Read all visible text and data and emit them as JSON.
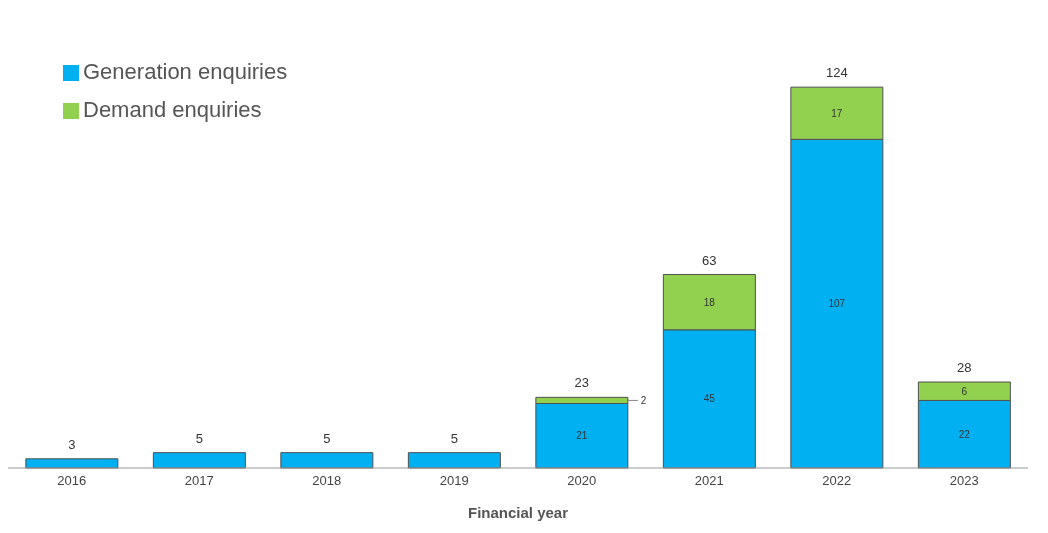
{
  "chart_data": {
    "type": "bar",
    "stacked": true,
    "xlabel": "Financial year",
    "categories": [
      "2016",
      "2017",
      "2018",
      "2019",
      "2020",
      "2021",
      "2022",
      "2023"
    ],
    "series": [
      {
        "name": "Generation enquiries",
        "color": "#00b0f0",
        "values": [
          3,
          5,
          5,
          5,
          21,
          45,
          107,
          22
        ],
        "value_labels": [
          null,
          null,
          null,
          null,
          "21",
          "45",
          "107",
          "22"
        ]
      },
      {
        "name": "Demand enquiries",
        "color": "#92d050",
        "values": [
          null,
          null,
          null,
          null,
          2,
          18,
          17,
          6
        ],
        "value_labels": [
          null,
          null,
          null,
          null,
          "2",
          "18",
          "17",
          "6"
        ]
      }
    ],
    "totals": [
      "3",
      "5",
      "5",
      "5",
      "23",
      "63",
      "124",
      "28"
    ],
    "legend": "top left"
  }
}
